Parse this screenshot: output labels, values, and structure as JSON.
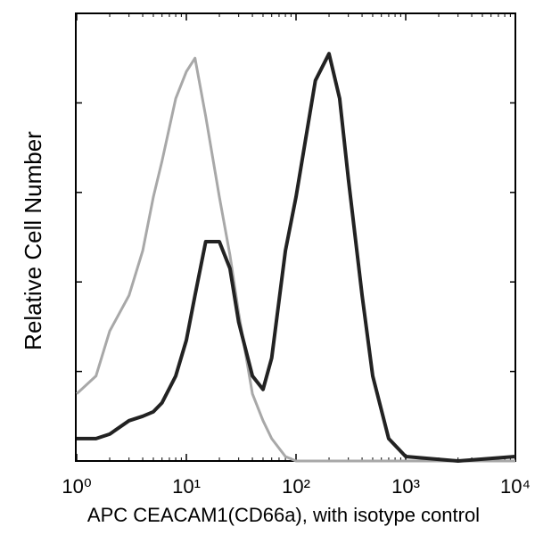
{
  "chart_data": {
    "type": "line",
    "ylabel": "Relative Cell Number",
    "xlabel": "APC CEACAM1(CD66a), with isotype control",
    "log_x": true,
    "xlim": [
      1,
      10000
    ],
    "xticks": [
      {
        "value": 1,
        "label": "10⁰"
      },
      {
        "value": 10,
        "label": "10¹"
      },
      {
        "value": 100,
        "label": "10²"
      },
      {
        "value": 1000,
        "label": "10³"
      },
      {
        "value": 10000,
        "label": "10⁴"
      }
    ],
    "ylim": [
      0,
      100
    ],
    "x": [
      1,
      1.5,
      2,
      3,
      4,
      5,
      6,
      8,
      10,
      12,
      15,
      20,
      25,
      30,
      40,
      50,
      60,
      80,
      100,
      150,
      200,
      250,
      300,
      400,
      500,
      700,
      1000,
      3000,
      10000
    ],
    "series": [
      {
        "color": "#a8a8a8",
        "values": [
          15,
          19,
          29,
          37,
          47,
          59,
          67,
          81,
          87,
          90,
          77,
          59,
          46,
          33,
          15,
          9,
          5,
          1,
          0,
          0,
          0,
          0,
          0,
          0,
          0,
          0,
          0,
          0,
          0
        ]
      },
      {
        "color": "#222222",
        "values": [
          5,
          5,
          6,
          9,
          10,
          11,
          13,
          19,
          27,
          37,
          49,
          49,
          43,
          31,
          19,
          16,
          23,
          47,
          59,
          85,
          91,
          81,
          63,
          37,
          19,
          5,
          1,
          0,
          1
        ]
      }
    ]
  }
}
